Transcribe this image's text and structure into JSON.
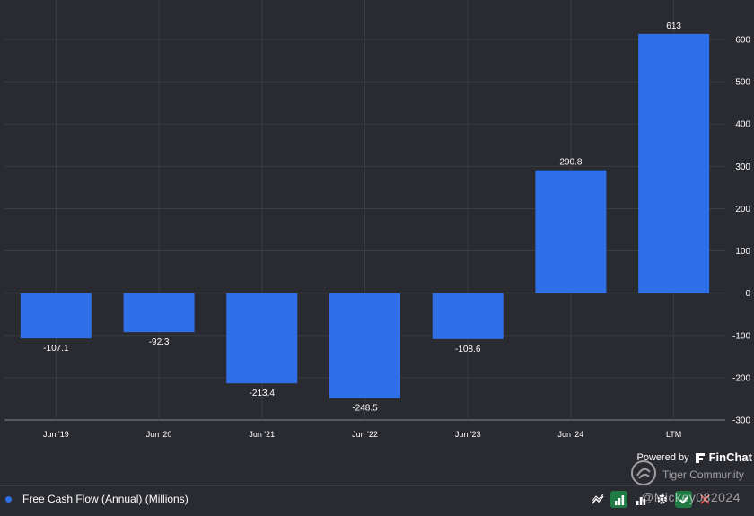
{
  "chart_data": {
    "type": "bar",
    "categories": [
      "Jun '19",
      "Jun '20",
      "Jun '21",
      "Jun '22",
      "Jun '23",
      "Jun '24",
      "LTM"
    ],
    "values": [
      -107.1,
      -92.3,
      -213.4,
      -248.5,
      -108.6,
      290.8,
      613
    ],
    "data_labels": [
      "-107.1",
      "-92.3",
      "-213.4",
      "-248.5",
      "-108.6",
      "290.8",
      "613"
    ],
    "yticks": [
      "600",
      "500",
      "400",
      "300",
      "200",
      "100",
      "0",
      "-100",
      "-200",
      "-300"
    ],
    "ytick_values": [
      600,
      500,
      400,
      300,
      200,
      100,
      0,
      -100,
      -200,
      -300
    ],
    "ylim": [
      -300,
      600
    ],
    "grid": true,
    "yaxis_side": "right",
    "bar_color": "#2f6fe8",
    "series": [
      {
        "name": "Free Cash Flow (Annual) (Millions)",
        "values": [
          -107.1,
          -92.3,
          -213.4,
          -248.5,
          -108.6,
          290.8,
          613
        ]
      }
    ]
  },
  "legend": {
    "label": "Free Cash Flow (Annual) (Millions)",
    "dot_color": "#2f6fe8",
    "tools": [
      "line-chart-icon",
      "bar-chart-icon",
      "bar-chart-outline-icon",
      "settings-icon",
      "check-icon",
      "close-icon"
    ]
  },
  "branding": {
    "powered_by": "Powered by",
    "brand": "FinChat"
  },
  "watermark": {
    "community": "Tiger Community",
    "user": "@Mickey082024"
  },
  "colors": {
    "background": "#2a2b31",
    "grid": "#3b3c44",
    "bar": "#2f6fe8",
    "active_tool": "#1f7a43"
  }
}
